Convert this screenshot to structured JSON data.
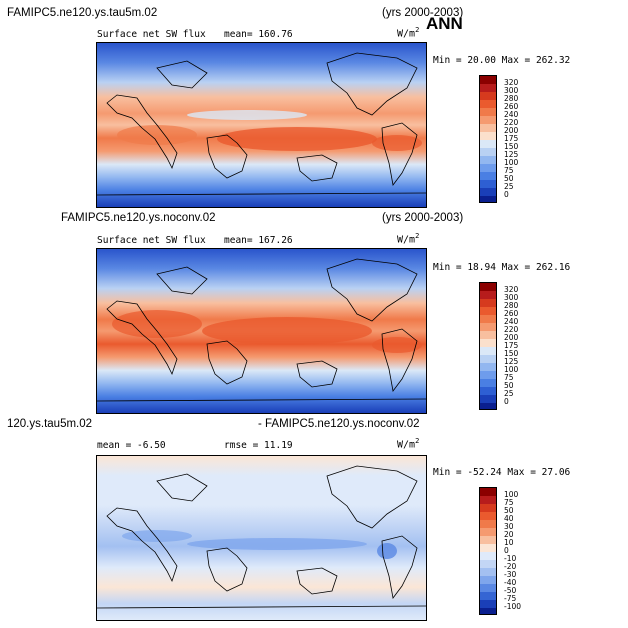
{
  "season": "ANN",
  "panels": [
    {
      "title_left": "FAMIPC5.ne120.ys.tau5m.02",
      "title_right": "(yrs 2000-2003)",
      "field": "Surface net SW flux",
      "stat": "mean= 160.76",
      "units_base": "W/m",
      "units_exp": "2",
      "minmax": "Min =  20.00 Max = 262.32",
      "colorbar": {
        "labels": [
          "320",
          "300",
          "280",
          "260",
          "240",
          "220",
          "200",
          "175",
          "150",
          "125",
          "100",
          "75",
          "50",
          "25",
          "0"
        ],
        "colors": [
          "#8b0000",
          "#b71c1c",
          "#d63a1e",
          "#ea5a2e",
          "#f07a4a",
          "#f59a70",
          "#f8bf9f",
          "#fbe0cc",
          "#dbe8f7",
          "#b9d1f3",
          "#92b7f0",
          "#6e9cec",
          "#4a7fe3",
          "#2e5fd3",
          "#1a3fb8",
          "#0a1f8f"
        ]
      }
    },
    {
      "title_left": "FAMIPC5.ne120.ys.noconv.02",
      "title_right": "(yrs 2000-2003)",
      "field": "Surface net SW flux",
      "stat": "mean= 167.26",
      "units_base": "W/m",
      "units_exp": "2",
      "minmax": "Min =  18.94 Max = 262.16",
      "colorbar": {
        "labels": [
          "320",
          "300",
          "280",
          "260",
          "240",
          "220",
          "200",
          "175",
          "150",
          "125",
          "100",
          "75",
          "50",
          "25",
          "0"
        ],
        "colors": [
          "#8b0000",
          "#b71c1c",
          "#d63a1e",
          "#ea5a2e",
          "#f07a4a",
          "#f59a70",
          "#f8bf9f",
          "#fbe0cc",
          "#dbe8f7",
          "#b9d1f3",
          "#92b7f0",
          "#6e9cec",
          "#4a7fe3",
          "#2e5fd3",
          "#1a3fb8",
          "#0a1f8f"
        ]
      }
    },
    {
      "title_left": "120.ys.tau5m.02",
      "title_right": "- FAMIPC5.ne120.ys.noconv.02",
      "field": "mean =  -6.50",
      "stat": "rmse =  11.19",
      "units_base": "W/m",
      "units_exp": "2",
      "minmax": "Min = -52.24 Max =  27.06",
      "colorbar": {
        "labels": [
          "100",
          "75",
          "50",
          "40",
          "30",
          "20",
          "10",
          "0",
          "-10",
          "-20",
          "-30",
          "-40",
          "-50",
          "-75",
          "-100"
        ],
        "colors": [
          "#8b0000",
          "#b71c1c",
          "#d63a1e",
          "#ea5a2e",
          "#f07a4a",
          "#f59a70",
          "#f8bf9f",
          "#fbe6d6",
          "#dfeafa",
          "#c3d6f5",
          "#a3c0f1",
          "#7fa6ec",
          "#5a88e3",
          "#3565d3",
          "#1a3fb8",
          "#0a1f8f"
        ]
      }
    }
  ]
}
